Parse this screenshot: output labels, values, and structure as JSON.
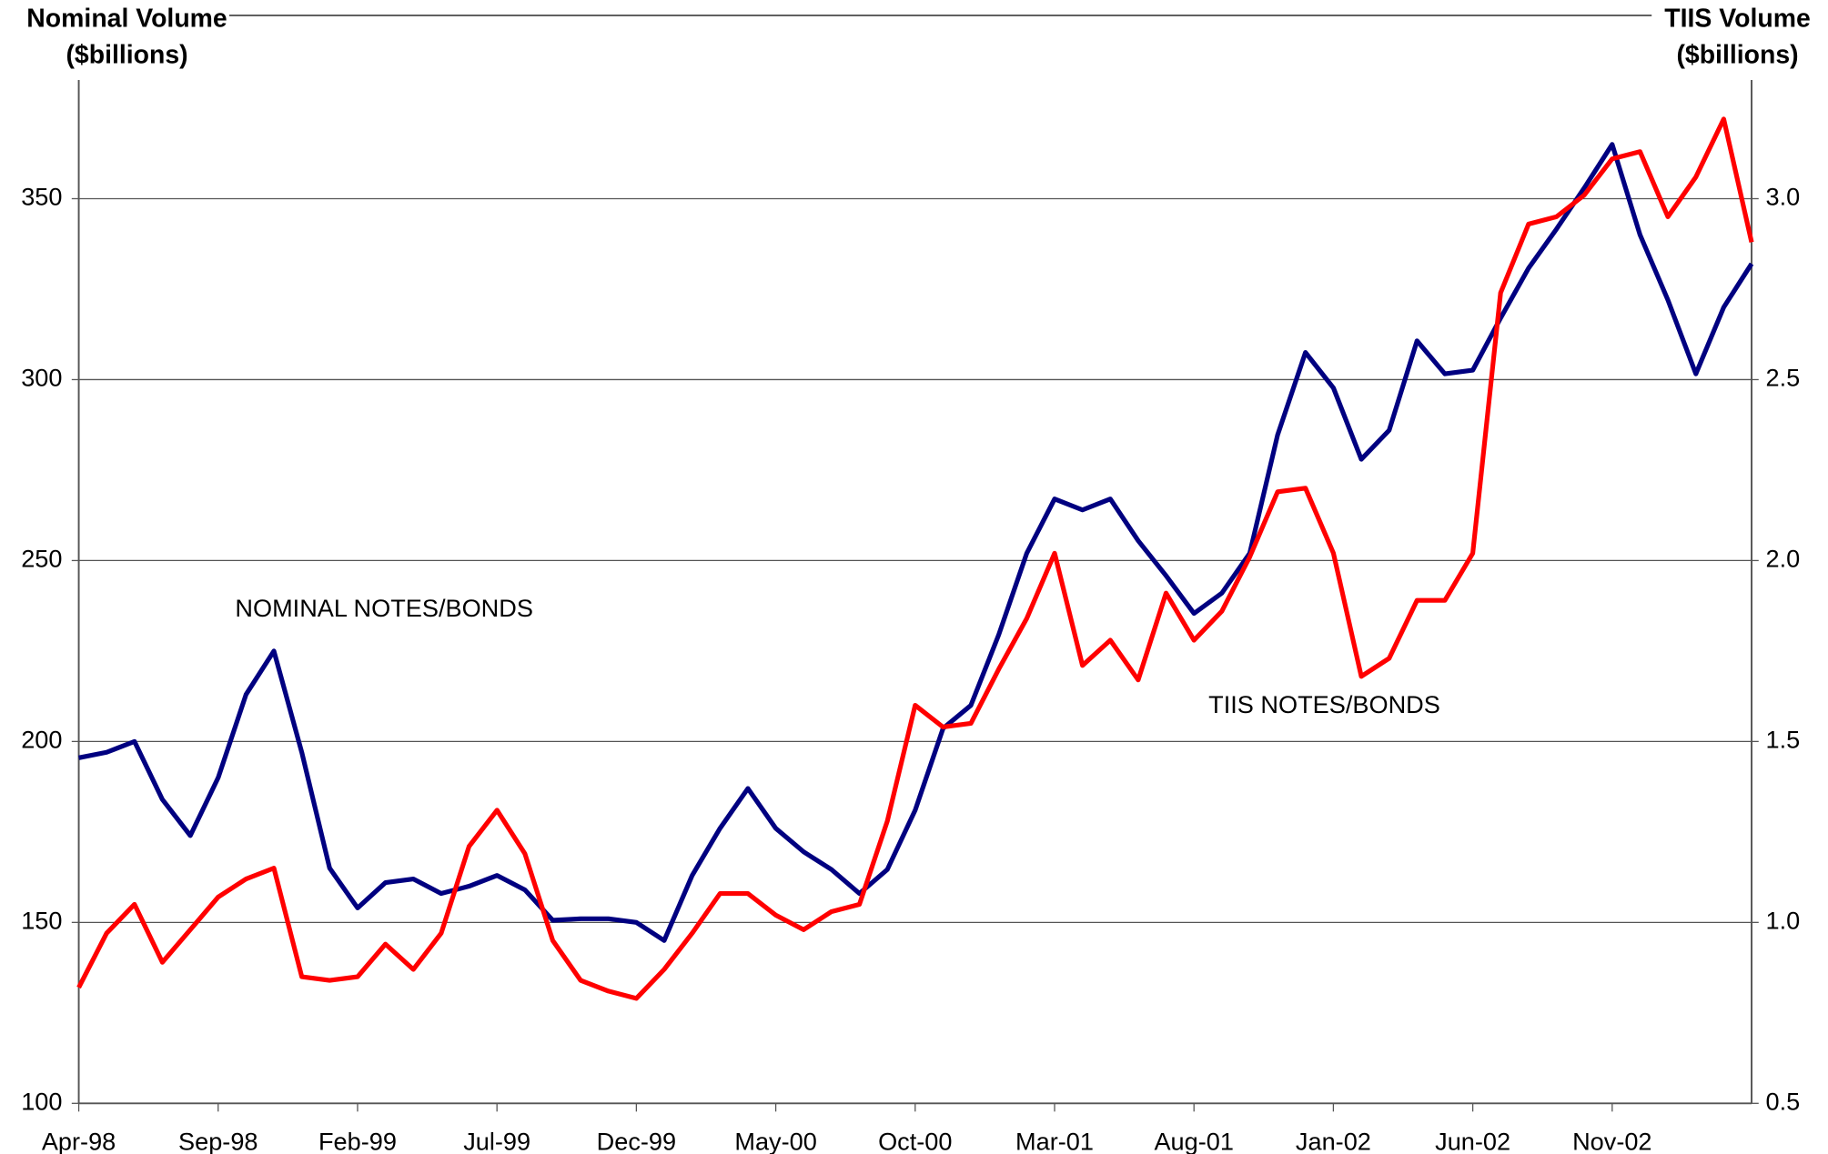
{
  "chart_data": {
    "type": "line",
    "ylabel": [
      "Nominal Volume",
      "($billions)"
    ],
    "y2label": [
      "TIIS Volume",
      "($billions)"
    ],
    "annotations": [
      "NOMINAL NOTES/BONDS",
      "TIIS NOTES/BONDS"
    ],
    "categories": [
      "Apr-98",
      null,
      null,
      null,
      null,
      "Sep-98",
      null,
      null,
      null,
      null,
      "Feb-99",
      null,
      null,
      null,
      null,
      "Jul-99",
      null,
      null,
      null,
      null,
      "Dec-99",
      null,
      null,
      null,
      null,
      "May-00",
      null,
      null,
      null,
      null,
      "Oct-00",
      null,
      null,
      null,
      null,
      "Mar-01",
      null,
      null,
      null,
      null,
      "Aug-01",
      null,
      null,
      null,
      null,
      "Jan-02",
      null,
      null,
      null,
      null,
      "Jun-02",
      null,
      null,
      null,
      null,
      "Nov-02",
      null,
      null,
      null,
      null,
      null
    ],
    "series": [
      {
        "name": "NOMINAL NOTES/BONDS",
        "color": "#000080",
        "axis": "y",
        "values": [
          195.5,
          197,
          200,
          184,
          174,
          190,
          213,
          225,
          197,
          165,
          154,
          161,
          162,
          158,
          160,
          163,
          159,
          150.6,
          151,
          151,
          150,
          145,
          163,
          176,
          187,
          176,
          169.5,
          164.6,
          158,
          164.6,
          181,
          203.6,
          210,
          229.5,
          252,
          267,
          264,
          267,
          255.5,
          245.8,
          235.4,
          241,
          252,
          284.7,
          307.5,
          297.7,
          278,
          286,
          310.7,
          301.6,
          302.6,
          317,
          330.8,
          341.6,
          353,
          365,
          340,
          322,
          301.6,
          320,
          332
        ]
      },
      {
        "name": "TIIS NOTES/BONDS",
        "color": "#ff0000",
        "axis": "y2",
        "values": [
          0.82,
          0.97,
          1.05,
          0.89,
          0.98,
          1.07,
          1.12,
          1.15,
          0.85,
          0.84,
          0.85,
          0.94,
          0.87,
          0.97,
          1.21,
          1.31,
          1.19,
          0.95,
          0.84,
          0.81,
          0.79,
          0.87,
          0.97,
          1.08,
          1.08,
          1.02,
          0.98,
          1.03,
          1.05,
          1.28,
          1.6,
          1.54,
          1.55,
          1.7,
          1.84,
          2.02,
          1.71,
          1.78,
          1.67,
          1.91,
          1.78,
          1.86,
          2.01,
          2.19,
          2.2,
          2.02,
          1.68,
          1.73,
          1.89,
          1.89,
          2.02,
          2.74,
          2.93,
          2.95,
          3.01,
          3.11,
          3.13,
          2.95,
          3.06,
          3.22,
          2.88
        ]
      }
    ],
    "ylim": [
      100,
      380
    ],
    "yticks": [
      100,
      150,
      200,
      250,
      300,
      350
    ],
    "y2lim": [
      0.5,
      3.3
    ],
    "y2ticks": [
      0.5,
      {
        "value": 1,
        "label": "1.0"
      },
      1.5,
      {
        "value": 2,
        "label": "2.0"
      },
      2.5,
      {
        "value": 3,
        "label": "3.0"
      }
    ],
    "grid": true
  }
}
